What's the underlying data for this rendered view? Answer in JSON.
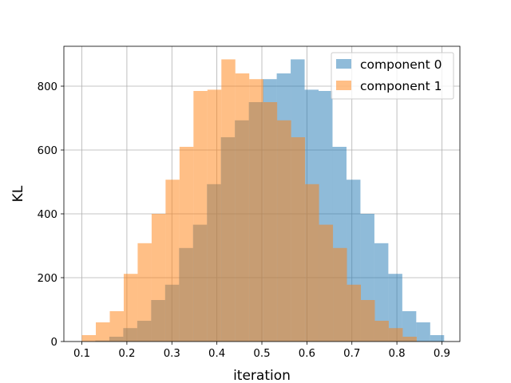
{
  "chart_data": {
    "type": "histogram",
    "xlabel": "iteration",
    "ylabel": "KL",
    "xlim": [
      0.06,
      0.94
    ],
    "ylim": [
      0,
      925
    ],
    "xticks": [
      0.1,
      0.2,
      0.3,
      0.4,
      0.5,
      0.6,
      0.7,
      0.8,
      0.9
    ],
    "xtick_labels": [
      "0.1",
      "0.2",
      "0.3",
      "0.4",
      "0.5",
      "0.6",
      "0.7",
      "0.8",
      "0.9"
    ],
    "yticks": [
      0,
      200,
      400,
      600,
      800
    ],
    "ytick_labels": [
      "0",
      "200",
      "400",
      "600",
      "800"
    ],
    "grid": true,
    "legend_position": "top-right",
    "bin_edges": [
      0.1,
      0.131,
      0.162,
      0.193,
      0.224,
      0.255,
      0.286,
      0.317,
      0.348,
      0.379,
      0.41,
      0.441,
      0.472,
      0.503,
      0.534,
      0.565,
      0.596,
      0.627,
      0.658,
      0.689,
      0.72,
      0.751,
      0.782,
      0.813,
      0.844,
      0.875,
      0.906
    ],
    "series": [
      {
        "name": "component 0",
        "color": "#1f77b4",
        "alpha": 0.5,
        "bin_starts": [
          0.13,
          0.161,
          0.192,
          0.223,
          0.254,
          0.285,
          0.316,
          0.347,
          0.378,
          0.409,
          0.44,
          0.471,
          0.502,
          0.533,
          0.564,
          0.595,
          0.626,
          0.657,
          0.688,
          0.719,
          0.75,
          0.781,
          0.812,
          0.843,
          0.874
        ],
        "counts": [
          3,
          15,
          42,
          65,
          130,
          178,
          293,
          366,
          493,
          640,
          693,
          750,
          822,
          840,
          884,
          789,
          785,
          610,
          507,
          400,
          308,
          212,
          95,
          60,
          20
        ]
      },
      {
        "name": "component 1",
        "color": "#ff7f0e",
        "alpha": 0.5,
        "bin_starts": [
          0.1,
          0.131,
          0.162,
          0.193,
          0.224,
          0.255,
          0.286,
          0.317,
          0.348,
          0.379,
          0.41,
          0.441,
          0.472,
          0.503,
          0.534,
          0.565,
          0.596,
          0.627,
          0.658,
          0.689,
          0.72,
          0.751,
          0.782,
          0.813
        ],
        "counts": [
          20,
          60,
          95,
          212,
          308,
          400,
          507,
          610,
          785,
          789,
          884,
          840,
          822,
          750,
          693,
          640,
          493,
          366,
          293,
          178,
          130,
          65,
          42,
          15
        ]
      }
    ]
  }
}
